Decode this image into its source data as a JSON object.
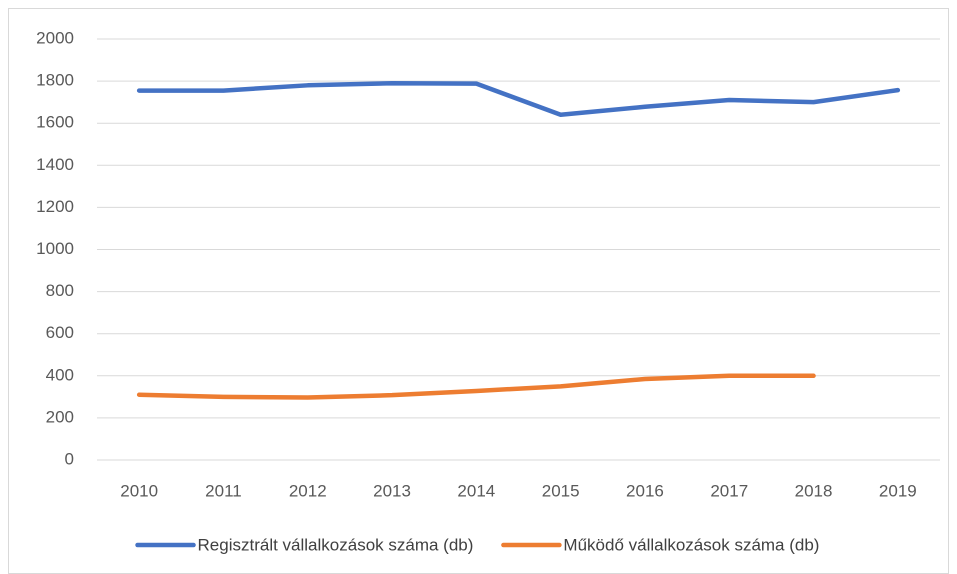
{
  "chart_data": {
    "type": "line",
    "categories": [
      "2010",
      "2011",
      "2012",
      "2013",
      "2014",
      "2015",
      "2016",
      "2017",
      "2018",
      "2019"
    ],
    "series": [
      {
        "name": "Regisztrált vállalkozások száma (db)",
        "color": "#4472c4",
        "values": [
          1755,
          1755,
          1780,
          1790,
          1788,
          1640,
          1678,
          1710,
          1700,
          1757
        ]
      },
      {
        "name": "Működő vállalkozások száma (db)",
        "color": "#ed7d31",
        "values": [
          310,
          300,
          297,
          308,
          328,
          350,
          385,
          400,
          400,
          null
        ]
      }
    ],
    "ylim": [
      0,
      2000
    ],
    "yticks": [
      0,
      200,
      400,
      600,
      800,
      1000,
      1200,
      1400,
      1600,
      1800,
      2000
    ],
    "grid": true,
    "legend": "bottom"
  }
}
